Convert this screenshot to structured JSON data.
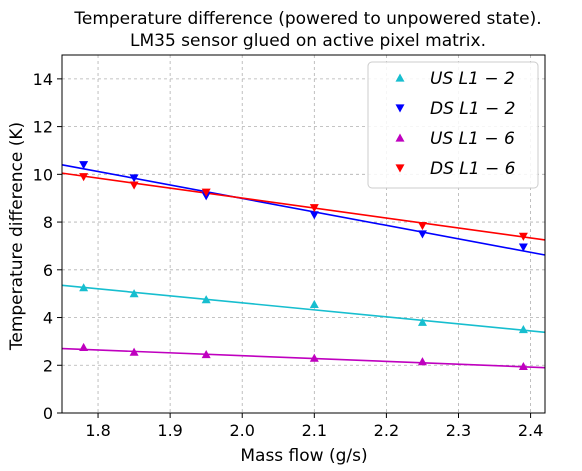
{
  "chart_data": {
    "type": "scatter",
    "title": "Temperature difference (powered to unpowered state).",
    "subtitle": "LM35 sensor glued on active pixel matrix.",
    "xlabel": "Mass flow (g/s)",
    "ylabel": "Temperature difference (K)",
    "xlim": [
      1.75,
      2.42
    ],
    "ylim": [
      0,
      15
    ],
    "xticks": [
      "1.8",
      "1.9",
      "2.0",
      "2.1",
      "2.2",
      "2.3",
      "2.4"
    ],
    "yticks": [
      "0",
      "2",
      "4",
      "6",
      "8",
      "10",
      "12",
      "14"
    ],
    "grid": true,
    "legend_position": "top-right",
    "series": [
      {
        "name": "US L1 − 2",
        "color": "#17becf",
        "marker": "triangle-up",
        "x": [
          1.78,
          1.85,
          1.95,
          2.1,
          2.25,
          2.39
        ],
        "y": [
          5.25,
          5.0,
          4.75,
          4.55,
          3.8,
          3.5
        ],
        "fit": [
          [
            1.75,
            5.35
          ],
          [
            2.42,
            3.38
          ]
        ]
      },
      {
        "name": "DS L1 − 2",
        "color": "#0000ff",
        "marker": "triangle-down",
        "x": [
          1.78,
          1.85,
          1.95,
          2.1,
          2.25,
          2.39
        ],
        "y": [
          10.4,
          9.85,
          9.1,
          8.3,
          7.5,
          6.95
        ],
        "fit": [
          [
            1.75,
            10.4
          ],
          [
            2.42,
            6.62
          ]
        ]
      },
      {
        "name": "US L1 − 6",
        "color": "#bf00bf",
        "marker": "triangle-up",
        "x": [
          1.78,
          1.85,
          1.95,
          2.1,
          2.25,
          2.39
        ],
        "y": [
          2.75,
          2.55,
          2.45,
          2.3,
          2.15,
          1.95
        ],
        "fit": [
          [
            1.75,
            2.7
          ],
          [
            2.42,
            1.9
          ]
        ]
      },
      {
        "name": "DS L1 − 6",
        "color": "#ff0000",
        "marker": "triangle-down",
        "x": [
          1.78,
          1.85,
          1.95,
          2.1,
          2.25,
          2.39
        ],
        "y": [
          9.9,
          9.55,
          9.25,
          8.6,
          7.85,
          7.4
        ],
        "fit": [
          [
            1.75,
            10.05
          ],
          [
            2.42,
            7.25
          ]
        ]
      }
    ]
  }
}
